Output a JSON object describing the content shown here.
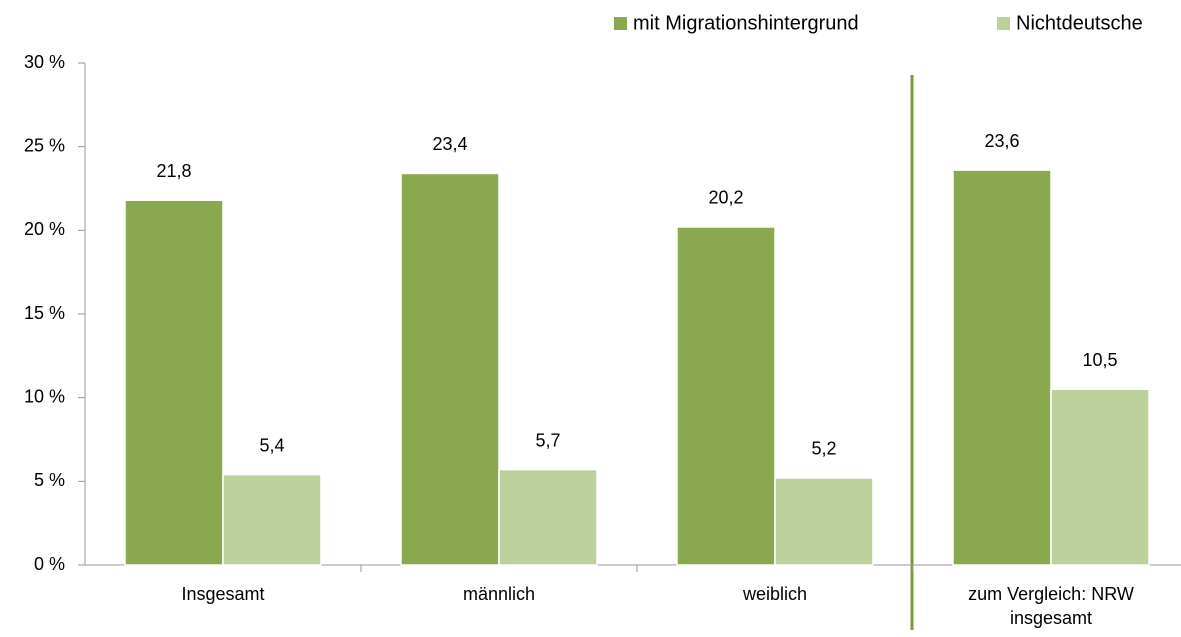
{
  "chart_data": {
    "type": "bar",
    "categories": [
      "Insgesamt",
      "männlich",
      "weiblich",
      "zum Vergleich: NRW insgesamt"
    ],
    "series": [
      {
        "name": "mit Migrationshintergrund",
        "color": "#8aa84e",
        "values": [
          21.8,
          23.4,
          20.2,
          23.6
        ],
        "value_labels": [
          "21,8",
          "23,4",
          "20,2",
          "23,6"
        ]
      },
      {
        "name": "Nichtdeutsche",
        "color": "#bbd09a",
        "values": [
          5.4,
          5.7,
          5.2,
          10.5
        ],
        "value_labels": [
          "5,4",
          "5,7",
          "5,2",
          "10,5"
        ]
      }
    ],
    "ylim": [
      0,
      30
    ],
    "yticks": [
      {
        "value": 0,
        "label": "0 %"
      },
      {
        "value": 5,
        "label": "5 %"
      },
      {
        "value": 10,
        "label": "10 %"
      },
      {
        "value": 15,
        "label": "15 %"
      },
      {
        "value": 20,
        "label": "20 %"
      },
      {
        "value": 25,
        "label": "25 %"
      },
      {
        "value": 30,
        "label": "30 %"
      }
    ],
    "legend": "top-right"
  }
}
